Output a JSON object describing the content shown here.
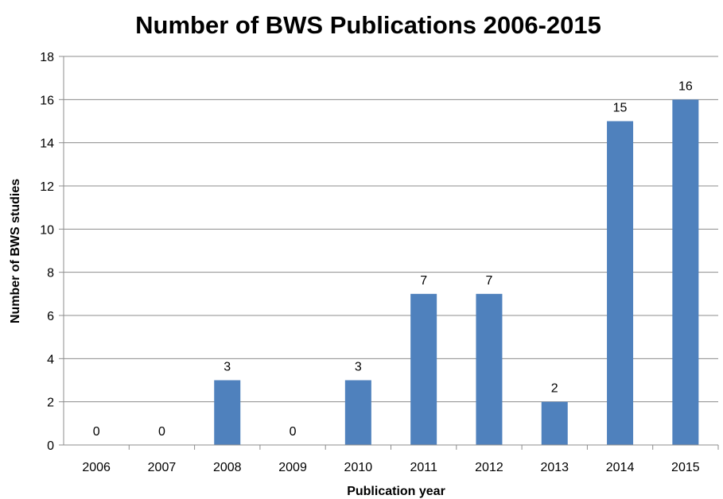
{
  "chart_data": {
    "type": "bar",
    "title": "Number of BWS Publications 2006-2015",
    "xlabel": "Publication year",
    "ylabel": "Number of BWS studies",
    "categories": [
      "2006",
      "2007",
      "2008",
      "2009",
      "2010",
      "2011",
      "2012",
      "2013",
      "2014",
      "2015"
    ],
    "values": [
      0,
      0,
      3,
      0,
      3,
      7,
      7,
      2,
      15,
      16
    ],
    "ylim": [
      0,
      18
    ],
    "yticks": [
      0,
      2,
      4,
      6,
      8,
      10,
      12,
      14,
      16,
      18
    ],
    "grid": true,
    "legend": "none",
    "data_labels": true,
    "bar_color": "#4f81bd"
  }
}
